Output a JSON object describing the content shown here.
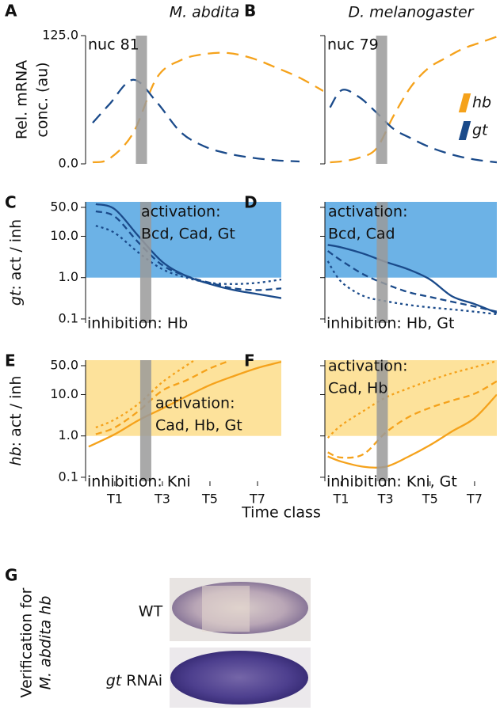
{
  "chart_data": [
    {
      "type": "line",
      "label": "A",
      "title": "M. abdita",
      "annotation": "nuc 81",
      "ylabel": [
        "Rel. mRNA",
        "conc. (au)"
      ],
      "xlim": [
        0,
        10
      ],
      "ylim": [
        0,
        125
      ],
      "yticks": [
        {
          "value": 0,
          "label": "0.0"
        },
        {
          "value": 125,
          "label": "125.0"
        }
      ],
      "highlight_x": 2.35,
      "x": [
        0.3,
        1,
        2,
        3,
        4,
        5,
        6,
        7,
        8,
        9,
        10
      ],
      "series": [
        {
          "color": "#f5a21b",
          "style": "long-dash",
          "values": [
            1.5,
            5,
            30,
            84,
            101,
            107,
            108,
            103,
            94,
            84,
            71
          ]
        },
        {
          "color": "#1a4a8a",
          "style": "long-dash",
          "values": [
            40,
            58,
            82,
            60,
            31,
            17,
            10,
            6,
            3.5,
            2.3,
            null
          ]
        }
      ]
    },
    {
      "type": "line",
      "label": "B",
      "title": "D. melanogaster",
      "annotation": "nuc 79",
      "xlim": [
        0,
        10
      ],
      "ylim": [
        0,
        125
      ],
      "yticks": [
        0,
        125
      ],
      "show_ytick_labels": false,
      "highlight_x": 3.3,
      "x": [
        0.3,
        1,
        2,
        3,
        4,
        5,
        6,
        7,
        8,
        9,
        10
      ],
      "series": [
        {
          "name": "hb",
          "color": "#f5a21b",
          "style": "long-dash",
          "values": [
            1.5,
            2.5,
            6,
            15,
            47,
            75,
            93,
            103,
            112,
            118,
            124
          ]
        },
        {
          "name": "gt",
          "color": "#1a4a8a",
          "style": "long-dash",
          "values": [
            55,
            72,
            65,
            50,
            34,
            25,
            17,
            11,
            6.5,
            3.5,
            1.5
          ]
        }
      ]
    },
    {
      "type": "line",
      "label": "C",
      "yscale": "log",
      "ylabel_italic": "gt",
      "ylabel": ": act / inh",
      "xlim": [
        -0.23,
        8
      ],
      "ylim": [
        0.08,
        68
      ],
      "yticks": [
        0.1,
        {
          "value": 1,
          "label": "1.0"
        },
        {
          "value": 10,
          "label": "10.0"
        },
        {
          "value": 50,
          "label": "50.0"
        }
      ],
      "highlight_x": 2.3,
      "activation_band": {
        "from": 1,
        "color": "#6cb2e6"
      },
      "activation_text": [
        "activation:",
        "Bcd, Cad, Gt"
      ],
      "inhibition_text": "inhibition: Hb",
      "x": [
        0.2,
        1,
        2,
        3,
        4,
        5,
        6,
        7,
        8
      ],
      "series": [
        {
          "color": "#1a4a8a",
          "style": "solid",
          "values": [
            60,
            45,
            10,
            2.4,
            1.1,
            0.7,
            0.5,
            0.4,
            0.32
          ]
        },
        {
          "color": "#1a4a8a",
          "style": "dashed",
          "values": [
            40,
            30,
            7,
            2,
            1.1,
            0.75,
            0.55,
            0.5,
            0.55
          ]
        },
        {
          "color": "#1a4a8a",
          "style": "dotted",
          "values": [
            18,
            12,
            4,
            1.6,
            1,
            0.75,
            0.7,
            0.75,
            0.9
          ]
        }
      ]
    },
    {
      "type": "line",
      "label": "D",
      "yscale": "log",
      "xlim": [
        0.27,
        8
      ],
      "ylim": [
        0.08,
        68
      ],
      "yticks": [
        0.1,
        1,
        10,
        50
      ],
      "show_ytick_labels": false,
      "highlight_x": 2.85,
      "activation_band": {
        "from": 1,
        "color": "#6cb2e6"
      },
      "activation_text": [
        "activation:",
        "Bcd, Cad"
      ],
      "inhibition_text": "inhibition: Hb, Gt",
      "x": [
        0.4,
        1,
        2,
        3,
        4,
        5,
        6,
        7,
        8
      ],
      "series": [
        {
          "color": "#1a4a8a",
          "style": "solid",
          "values": [
            6.2,
            5.4,
            3.8,
            2.4,
            1.6,
            0.9,
            0.35,
            0.23,
            0.14
          ]
        },
        {
          "color": "#1a4a8a",
          "style": "dashed",
          "values": [
            4.4,
            2.6,
            1.2,
            0.7,
            0.45,
            0.34,
            0.26,
            0.2,
            0.15
          ]
        },
        {
          "color": "#1a4a8a",
          "style": "dotted",
          "values": [
            2.5,
            0.8,
            0.36,
            0.27,
            0.22,
            0.19,
            0.17,
            0.15,
            0.13
          ]
        }
      ]
    },
    {
      "type": "line",
      "label": "E",
      "yscale": "log",
      "ylabel_italic": "hb",
      "ylabel": ": act / inh",
      "xlim": [
        -0.23,
        8
      ],
      "ylim": [
        0.08,
        68
      ],
      "yticks": [
        0.1,
        {
          "value": 1,
          "label": "1.0"
        },
        {
          "value": 10,
          "label": "10.0"
        },
        {
          "value": 50,
          "label": "50.0"
        }
      ],
      "xticks": [
        {
          "value": 1,
          "label": "T1"
        },
        {
          "value": 3,
          "label": "T3"
        },
        {
          "value": 5,
          "label": "T5"
        },
        {
          "value": 7,
          "label": "T7"
        }
      ],
      "highlight_x": 2.3,
      "activation_band": {
        "from": 1,
        "color": "#fde29b"
      },
      "activation_text": [
        "activation:",
        "Cad, Hb, Gt"
      ],
      "inhibition_text": "inhibition: Kni",
      "series": [
        {
          "color": "#f5a21b",
          "style": "solid",
          "x": [
            -0.1,
            1,
            2,
            3,
            4,
            5,
            6,
            7,
            8
          ],
          "values": [
            0.55,
            1.1,
            2.4,
            4.6,
            9,
            17,
            28,
            44,
            62
          ]
        },
        {
          "color": "#f5a21b",
          "style": "dashed",
          "x": [
            0.2,
            1,
            2,
            3,
            4,
            5,
            5.8
          ],
          "values": [
            1.1,
            1.6,
            4,
            12.5,
            22,
            43,
            65
          ]
        },
        {
          "color": "#f5a21b",
          "style": "dotted",
          "x": [
            0.2,
            1,
            2,
            3,
            4,
            4.3
          ],
          "values": [
            1.6,
            2.5,
            6,
            20,
            50,
            65
          ]
        }
      ]
    },
    {
      "type": "line",
      "label": "F",
      "yscale": "log",
      "xlim": [
        0.27,
        8
      ],
      "ylim": [
        0.08,
        68
      ],
      "yticks": [
        0.1,
        1,
        10,
        50
      ],
      "show_ytick_labels": false,
      "xticks": [
        {
          "value": 1,
          "label": "T1"
        },
        {
          "value": 3,
          "label": "T3"
        },
        {
          "value": 5,
          "label": "T5"
        },
        {
          "value": 7,
          "label": "T7"
        }
      ],
      "highlight_x": 2.85,
      "activation_band": {
        "from": 1,
        "color": "#fde29b"
      },
      "activation_text": [
        "activation:",
        "Cad, Hb"
      ],
      "inhibition_text": "inhibition: Kni, Gt",
      "x": [
        0.4,
        1,
        2,
        3,
        4,
        5,
        6,
        7,
        8
      ],
      "series": [
        {
          "color": "#f5a21b",
          "style": "solid",
          "values": [
            0.32,
            0.24,
            0.18,
            0.18,
            0.31,
            0.6,
            1.3,
            2.7,
            10
          ]
        },
        {
          "color": "#f5a21b",
          "style": "dashed",
          "values": [
            0.4,
            0.3,
            0.36,
            1.2,
            2.8,
            4.8,
            7.2,
            10.5,
            21
          ]
        },
        {
          "color": "#f5a21b",
          "style": "dotted",
          "values": [
            0.9,
            1.8,
            4,
            8.5,
            14,
            22,
            33,
            46,
            65
          ]
        }
      ]
    }
  ],
  "xlabel": "Time class",
  "panel_g": {
    "label": "G",
    "ylabel": [
      "Verification for",
      "M. abdita hb"
    ],
    "images": [
      {
        "label": "WT"
      },
      {
        "label_italic": "gt",
        "label": "RNAi"
      }
    ]
  }
}
